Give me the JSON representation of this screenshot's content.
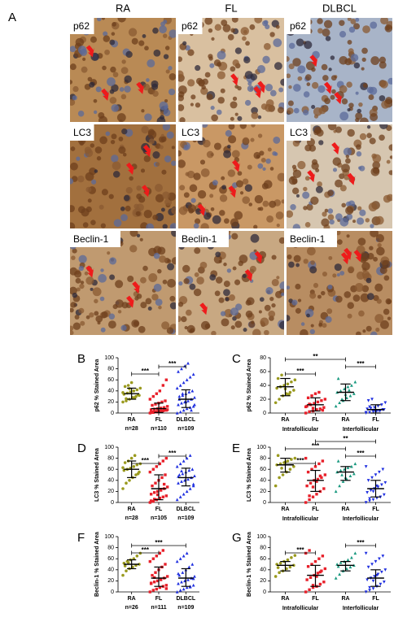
{
  "panel_a": {
    "label": "A",
    "columns": [
      "RA",
      "FL",
      "DLBCL"
    ],
    "rows": [
      "p62",
      "LC3",
      "Beclin-1"
    ]
  },
  "chart_data": [
    {
      "type": "dot",
      "label": "B",
      "ylabel": "p62 % Stained Area",
      "ylim": [
        0,
        100
      ],
      "yticks": [
        0,
        20,
        40,
        60,
        80,
        100
      ],
      "series": [
        {
          "name": "RA",
          "n_label": "n=28",
          "color": "#9a9a1e",
          "marker": "circle",
          "mean": 35,
          "bar": [
            25,
            45
          ],
          "values": [
            20,
            22,
            25,
            28,
            30,
            32,
            34,
            36,
            38,
            40,
            42,
            45,
            48,
            50,
            55,
            28,
            33,
            37,
            26,
            44
          ]
        },
        {
          "name": "FL",
          "n_label": "n=110",
          "color": "#e8202a",
          "marker": "square",
          "mean": 8,
          "bar": [
            1,
            18
          ],
          "values": [
            0,
            1,
            2,
            3,
            4,
            5,
            6,
            7,
            8,
            9,
            10,
            12,
            14,
            16,
            18,
            20,
            22,
            25,
            30,
            35,
            40,
            50,
            60,
            1,
            2,
            3,
            4,
            5,
            6,
            2
          ]
        },
        {
          "name": "DLBCL",
          "n_label": "n=109",
          "color": "#2030e0",
          "marker": "triangle",
          "mean": 25,
          "bar": [
            10,
            42
          ],
          "values": [
            0,
            2,
            5,
            8,
            10,
            12,
            15,
            18,
            20,
            22,
            25,
            28,
            30,
            32,
            35,
            38,
            40,
            45,
            50,
            55,
            60,
            65,
            70,
            75,
            80,
            85,
            90,
            5,
            15,
            25,
            35,
            20
          ]
        }
      ],
      "significance": [
        {
          "from": 0,
          "to": 1,
          "label": "***"
        },
        {
          "from": 1,
          "to": 2,
          "label": "***"
        }
      ]
    },
    {
      "type": "dot",
      "label": "C",
      "ylabel": "p62 % Stained Area",
      "ylim": [
        0,
        80
      ],
      "yticks": [
        0,
        20,
        40,
        60,
        80
      ],
      "regions": [
        "Intrafollicular",
        "Interfollicular"
      ],
      "series": [
        {
          "name": "RA",
          "color": "#9a9a1e",
          "marker": "circle",
          "mean": 38,
          "bar": [
            25,
            50
          ],
          "values": [
            15,
            20,
            25,
            28,
            30,
            33,
            36,
            38,
            40,
            42,
            45,
            48,
            50,
            55,
            35,
            27
          ]
        },
        {
          "name": "FL",
          "color": "#e8202a",
          "marker": "square",
          "mean": 12,
          "bar": [
            3,
            22
          ],
          "values": [
            0,
            2,
            3,
            5,
            6,
            8,
            10,
            12,
            14,
            16,
            18,
            20,
            22,
            25,
            28,
            30,
            4,
            9,
            13,
            7
          ]
        },
        {
          "name": "RA",
          "color": "#1a9a80",
          "marker": "triangle",
          "mean": 30,
          "bar": [
            18,
            42
          ],
          "values": [
            10,
            15,
            18,
            22,
            25,
            28,
            30,
            32,
            35,
            38,
            40,
            45,
            50,
            20,
            27,
            33
          ]
        },
        {
          "name": "FL",
          "color": "#2030e0",
          "marker": "triangle-down",
          "mean": 5,
          "bar": [
            0,
            12
          ],
          "values": [
            0,
            1,
            2,
            3,
            4,
            5,
            6,
            7,
            8,
            10,
            12,
            15,
            18,
            20,
            2,
            3,
            5,
            1,
            9,
            4
          ]
        }
      ],
      "significance": [
        {
          "from": 0,
          "to": 1,
          "label": "***"
        },
        {
          "from": 2,
          "to": 3,
          "label": "***"
        },
        {
          "from": 0,
          "to": 2,
          "label": "**"
        }
      ]
    },
    {
      "type": "dot",
      "label": "D",
      "ylabel": "LC3 % Stained Area",
      "ylim": [
        0,
        100
      ],
      "yticks": [
        0,
        20,
        40,
        60,
        80,
        100
      ],
      "series": [
        {
          "name": "RA",
          "n_label": "n=28",
          "color": "#9a9a1e",
          "marker": "circle",
          "mean": 60,
          "bar": [
            45,
            75
          ],
          "values": [
            25,
            35,
            40,
            45,
            50,
            55,
            58,
            60,
            62,
            65,
            68,
            70,
            72,
            75,
            80,
            85,
            52,
            63
          ]
        },
        {
          "name": "FL",
          "n_label": "n=105",
          "color": "#e8202a",
          "marker": "square",
          "mean": 25,
          "bar": [
            5,
            50
          ],
          "values": [
            0,
            2,
            5,
            8,
            10,
            12,
            15,
            18,
            20,
            22,
            25,
            28,
            30,
            35,
            40,
            45,
            50,
            55,
            60,
            65,
            70,
            75,
            80,
            3,
            6,
            14,
            24,
            33
          ]
        },
        {
          "name": "DLBCL",
          "n_label": "n=109",
          "color": "#2030e0",
          "marker": "triangle",
          "mean": 45,
          "bar": [
            30,
            62
          ],
          "values": [
            5,
            10,
            15,
            20,
            25,
            30,
            35,
            38,
            40,
            42,
            45,
            48,
            50,
            52,
            55,
            58,
            60,
            65,
            70,
            75,
            80,
            85,
            33,
            47,
            57
          ]
        }
      ],
      "significance": [
        {
          "from": 0,
          "to": 1,
          "label": "***"
        },
        {
          "from": 1,
          "to": 2,
          "label": "***"
        }
      ]
    },
    {
      "type": "dot",
      "label": "E",
      "ylabel": "LC3 % Stained Area",
      "ylim": [
        0,
        100
      ],
      "yticks": [
        0,
        20,
        40,
        60,
        80,
        100
      ],
      "regions": [
        "Intrafollicular",
        "Interfollicular"
      ],
      "series": [
        {
          "name": "RA",
          "color": "#9a9a1e",
          "marker": "circle",
          "mean": 68,
          "bar": [
            55,
            80
          ],
          "values": [
            30,
            45,
            50,
            55,
            60,
            65,
            68,
            70,
            72,
            75,
            78,
            80,
            85,
            62,
            73
          ]
        },
        {
          "name": "FL",
          "color": "#e8202a",
          "marker": "square",
          "mean": 40,
          "bar": [
            20,
            58
          ],
          "values": [
            0,
            5,
            10,
            15,
            20,
            25,
            30,
            35,
            40,
            42,
            45,
            50,
            55,
            60,
            65,
            70,
            75,
            80,
            12,
            28,
            38,
            48
          ]
        },
        {
          "name": "RA",
          "color": "#1a9a80",
          "marker": "triangle",
          "mean": 55,
          "bar": [
            40,
            65
          ],
          "values": [
            20,
            30,
            38,
            42,
            48,
            52,
            55,
            58,
            60,
            63,
            65,
            70,
            75,
            50,
            45
          ]
        },
        {
          "name": "FL",
          "color": "#2030e0",
          "marker": "triangle-down",
          "mean": 25,
          "bar": [
            10,
            40
          ],
          "values": [
            0,
            3,
            5,
            8,
            10,
            14,
            18,
            22,
            25,
            28,
            32,
            36,
            40,
            45,
            50,
            55,
            60,
            65,
            7,
            20,
            30
          ]
        }
      ],
      "significance": [
        {
          "from": 0,
          "to": 1,
          "label": "***"
        },
        {
          "from": 2,
          "to": 3,
          "label": "***"
        },
        {
          "from": 0,
          "to": 2,
          "label": "***"
        },
        {
          "from": 1,
          "to": 3,
          "label": "**"
        }
      ]
    },
    {
      "type": "dot",
      "label": "F",
      "ylabel": "Beclin-1 % Stained Area",
      "ylim": [
        0,
        100
      ],
      "yticks": [
        0,
        20,
        40,
        60,
        80,
        100
      ],
      "series": [
        {
          "name": "RA",
          "n_label": "n=26",
          "color": "#9a9a1e",
          "marker": "circle",
          "mean": 50,
          "bar": [
            42,
            58
          ],
          "values": [
            30,
            38,
            42,
            45,
            48,
            50,
            52,
            55,
            58,
            60,
            65,
            70,
            47,
            53
          ]
        },
        {
          "name": "FL",
          "n_label": "n=111",
          "color": "#e8202a",
          "marker": "square",
          "mean": 25,
          "bar": [
            10,
            45
          ],
          "values": [
            0,
            3,
            5,
            8,
            10,
            12,
            15,
            18,
            20,
            22,
            25,
            28,
            30,
            35,
            40,
            45,
            50,
            55,
            60,
            65,
            70,
            75,
            6,
            16,
            26
          ]
        },
        {
          "name": "DLBCL",
          "n_label": "n=109",
          "color": "#2030e0",
          "marker": "triangle",
          "mean": 25,
          "bar": [
            10,
            42
          ],
          "values": [
            0,
            3,
            5,
            8,
            10,
            12,
            15,
            18,
            20,
            22,
            25,
            28,
            30,
            35,
            40,
            45,
            50,
            55,
            60,
            65,
            70,
            9,
            24,
            33
          ]
        }
      ],
      "significance": [
        {
          "from": 0,
          "to": 1,
          "label": "***"
        },
        {
          "from": 0,
          "to": 2,
          "label": "***"
        }
      ]
    },
    {
      "type": "dot",
      "label": "G",
      "ylabel": "Beclin-1 % Stained Area",
      "ylim": [
        0,
        100
      ],
      "yticks": [
        0,
        20,
        40,
        60,
        80,
        100
      ],
      "regions": [
        "Intrafollicular",
        "Interfollicular"
      ],
      "series": [
        {
          "name": "RA",
          "color": "#9a9a1e",
          "marker": "circle",
          "mean": 48,
          "bar": [
            38,
            55
          ],
          "values": [
            28,
            35,
            38,
            42,
            45,
            48,
            50,
            52,
            55,
            58,
            62,
            66,
            44
          ]
        },
        {
          "name": "FL",
          "color": "#e8202a",
          "marker": "square",
          "mean": 30,
          "bar": [
            10,
            48
          ],
          "values": [
            0,
            4,
            8,
            10,
            14,
            18,
            22,
            26,
            30,
            34,
            38,
            42,
            46,
            50,
            55,
            60,
            65,
            70,
            75,
            12,
            28,
            36
          ]
        },
        {
          "name": "RA",
          "color": "#1a9a80",
          "marker": "triangle",
          "mean": 48,
          "bar": [
            38,
            55
          ],
          "values": [
            25,
            32,
            38,
            42,
            45,
            48,
            50,
            53,
            55,
            58,
            62,
            70,
            46
          ]
        },
        {
          "name": "FL",
          "color": "#2030e0",
          "marker": "triangle-down",
          "mean": 25,
          "bar": [
            10,
            40
          ],
          "values": [
            0,
            3,
            6,
            10,
            14,
            18,
            22,
            25,
            28,
            32,
            36,
            40,
            45,
            50,
            55,
            60,
            65,
            70,
            8,
            20,
            30
          ]
        }
      ],
      "significance": [
        {
          "from": 0,
          "to": 1,
          "label": "***"
        },
        {
          "from": 2,
          "to": 3,
          "label": "***"
        }
      ]
    }
  ]
}
